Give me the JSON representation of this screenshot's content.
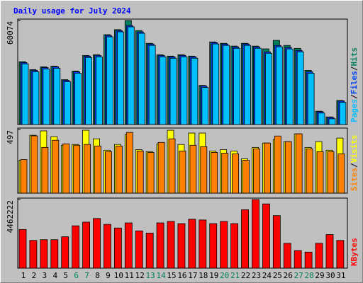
{
  "title": "Daily usage for July 2024",
  "legend_separator": "/",
  "categories": [
    "1",
    "2",
    "3",
    "4",
    "5",
    "6",
    "7",
    "8",
    "9",
    "10",
    "11",
    "12",
    "13",
    "14",
    "15",
    "16",
    "17",
    "18",
    "19",
    "20",
    "21",
    "22",
    "23",
    "24",
    "25",
    "26",
    "27",
    "28",
    "29",
    "30",
    "31"
  ],
  "category_colors": [
    "#000000",
    "#000000",
    "#000000",
    "#000000",
    "#000000",
    "#00805c",
    "#00805c",
    "#000000",
    "#000000",
    "#000000",
    "#000000",
    "#000000",
    "#00805c",
    "#00805c",
    "#000000",
    "#000000",
    "#000000",
    "#000000",
    "#000000",
    "#00805c",
    "#00805c",
    "#000000",
    "#000000",
    "#000000",
    "#000000",
    "#000000",
    "#00805c",
    "#00805c",
    "#000000",
    "#000000",
    "#000000"
  ],
  "chart_data": [
    {
      "type": "bar",
      "ylim": [
        0,
        60074
      ],
      "yticks": [
        60074
      ],
      "series": [
        {
          "name": "Hits",
          "color": "#00805c",
          "values": [
            36300,
            31700,
            33300,
            33700,
            25900,
            30900,
            39900,
            40300,
            51900,
            54800,
            60074,
            54300,
            46900,
            40300,
            39500,
            40300,
            39500,
            22600,
            47700,
            46900,
            45300,
            46900,
            45300,
            43700,
            48600,
            45700,
            44000,
            31300,
            7700,
            4400,
            13900
          ]
        },
        {
          "name": "Files",
          "color": "#0040ff",
          "values": [
            35800,
            31270,
            32920,
            33330,
            25510,
            30450,
            39500,
            39920,
            51440,
            54320,
            57200,
            53500,
            46500,
            39920,
            39090,
            39920,
            39090,
            22220,
            47320,
            46500,
            44850,
            46500,
            44850,
            41970,
            45680,
            44440,
            42800,
            30450,
            7410,
            4120,
            13580
          ]
        },
        {
          "name": "Pages",
          "color": "#00c0ff",
          "values": [
            35000,
            30470,
            32120,
            32530,
            24710,
            29650,
            38700,
            39120,
            50640,
            53520,
            56400,
            52700,
            45700,
            39120,
            38290,
            39120,
            38290,
            21420,
            46520,
            45700,
            44050,
            45700,
            44050,
            41170,
            44880,
            43640,
            42000,
            29650,
            6610,
            3320,
            12780
          ]
        }
      ]
    },
    {
      "type": "bar",
      "ylim": [
        0,
        497
      ],
      "yticks": [
        497
      ],
      "series": [
        {
          "name": "Visits",
          "color": "#ffff00",
          "values": [
            257,
            452,
            486,
            441,
            374,
            380,
            491,
            424,
            335,
            380,
            458,
            340,
            324,
            385,
            491,
            380,
            469,
            469,
            329,
            340,
            329,
            268,
            357,
            391,
            419,
            402,
            463,
            357,
            402,
            335,
            430
          ]
        },
        {
          "name": "Sites",
          "color": "#ff8000",
          "values": [
            262,
            447,
            357,
            413,
            385,
            374,
            380,
            368,
            324,
            368,
            474,
            329,
            318,
            396,
            424,
            329,
            374,
            363,
            318,
            312,
            307,
            257,
            346,
            391,
            446,
            402,
            463,
            346,
            324,
            324,
            307
          ]
        }
      ]
    },
    {
      "type": "bar",
      "ylim": [
        0,
        4462222
      ],
      "yticks": [
        4462222
      ],
      "series": [
        {
          "name": "KBytes",
          "color": "#ff0000",
          "values": [
            2516000,
            1804000,
            1851000,
            1851000,
            2041000,
            2753000,
            2991000,
            3228000,
            2848000,
            2611000,
            2943000,
            2421000,
            2279000,
            2943000,
            3038000,
            2896000,
            3180000,
            3133000,
            2896000,
            3038000,
            2896000,
            3798000,
            4462222,
            4177000,
            3418000,
            1614000,
            1139000,
            1044000,
            1614000,
            2184000,
            1804000
          ]
        }
      ]
    }
  ]
}
